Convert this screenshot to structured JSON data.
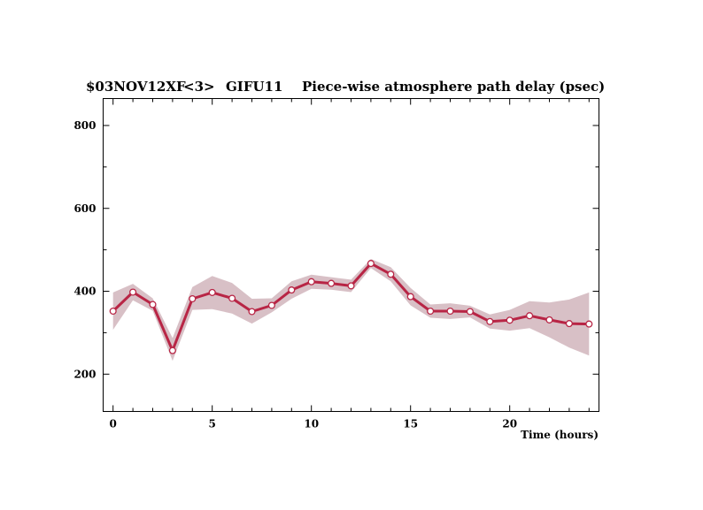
{
  "chart_data": {
    "type": "line",
    "title": {
      "experiment": "$03NOV12XF",
      "band": "<3>",
      "station": "GIFU11",
      "description": "Piece-wise atmosphere path delay (psec)"
    },
    "xlabel": "Time (hours)",
    "ylabel": "",
    "xlim": [
      -0.5,
      24.5
    ],
    "ylim": [
      110,
      865
    ],
    "xticks": [
      0,
      5,
      10,
      15,
      20
    ],
    "xtick_labels": [
      "0",
      "5",
      "10",
      "15",
      "20"
    ],
    "yticks": [
      200,
      400,
      600,
      800
    ],
    "ytick_labels": [
      "200",
      "400",
      "600",
      "800"
    ],
    "grid": false,
    "legend": "none",
    "colors": {
      "line": "#b82545",
      "band": "#d8c0c6",
      "marker_fill": "#ffffff"
    },
    "series": [
      {
        "x": [
          0,
          1,
          2,
          3,
          4,
          5,
          6,
          7,
          8,
          9,
          10,
          11,
          12,
          13,
          14,
          15,
          16,
          17,
          18,
          19,
          20,
          21,
          22,
          23,
          24
        ],
        "values": [
          352,
          398,
          368,
          257,
          382,
          397,
          383,
          351,
          366,
          403,
          423,
          419,
          413,
          467,
          441,
          387,
          352,
          352,
          351,
          327,
          330,
          341,
          331,
          322,
          321
        ],
        "upper": [
          397,
          418,
          383,
          287,
          410,
          437,
          420,
          382,
          383,
          424,
          440,
          434,
          428,
          478,
          458,
          408,
          368,
          371,
          365,
          344,
          355,
          376,
          373,
          380,
          397
        ],
        "lower": [
          307,
          378,
          353,
          232,
          355,
          357,
          346,
          322,
          349,
          382,
          406,
          404,
          398,
          456,
          424,
          366,
          336,
          333,
          337,
          310,
          305,
          311,
          289,
          264,
          245
        ]
      }
    ]
  }
}
